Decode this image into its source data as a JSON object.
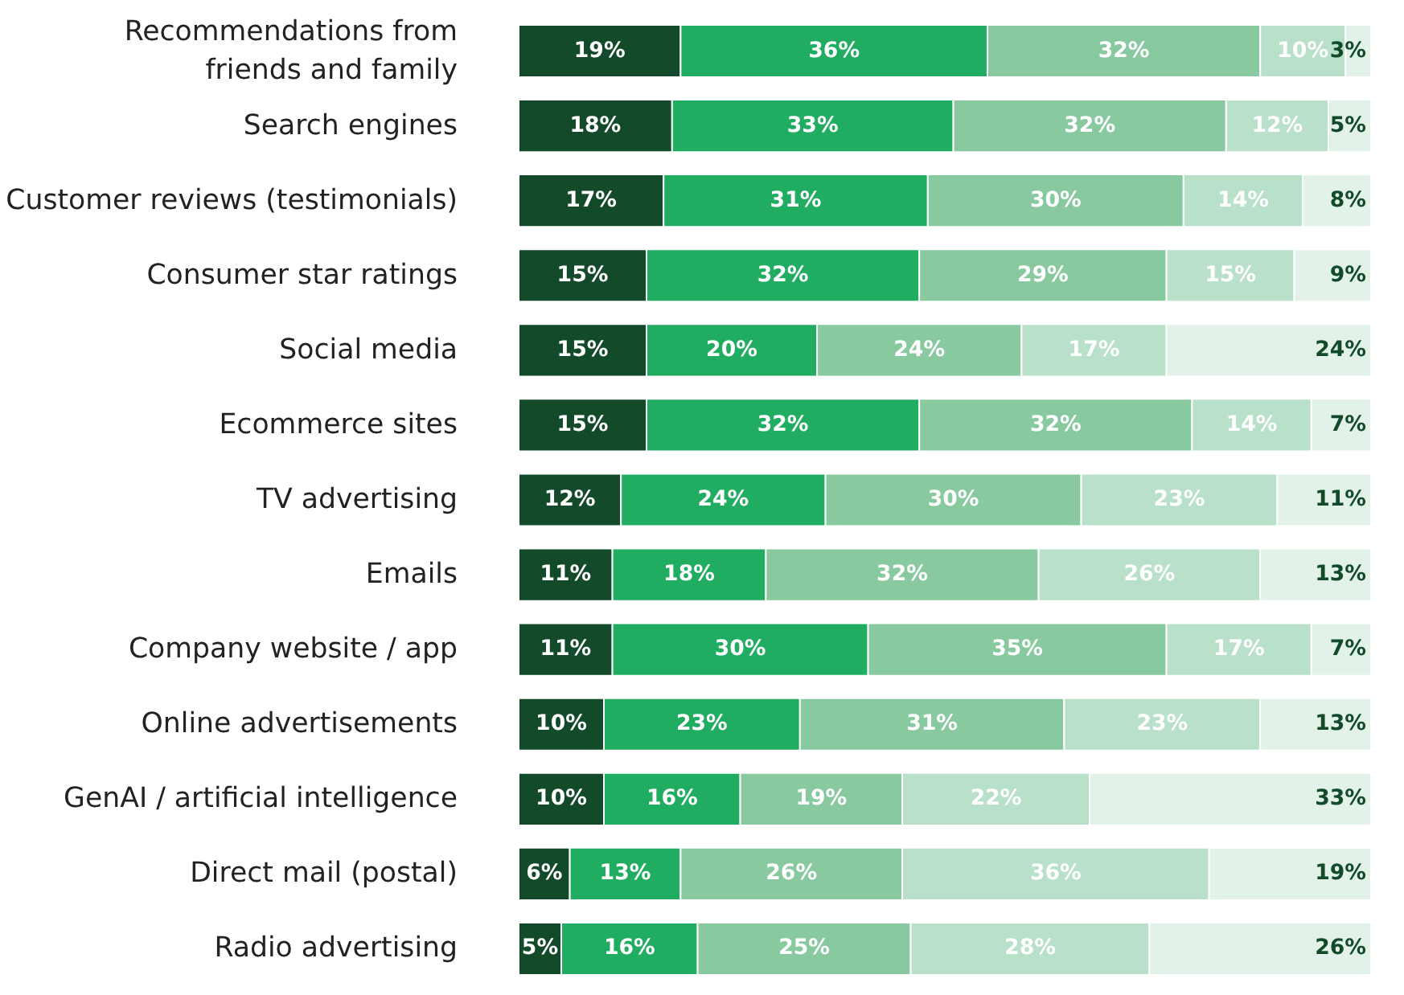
{
  "chart_data": {
    "type": "bar",
    "orientation": "horizontal",
    "stacked": true,
    "tick_labels": "y",
    "categories": [
      "Recommendations from friends and family",
      "Search engines",
      "Customer reviews (testimonials)",
      "Consumer star ratings",
      "Social media",
      "Ecommerce sites",
      "TV advertising",
      "Emails",
      "Company website / app",
      "Online advertisements",
      "GenAI / artificial intelligence",
      "Direct mail (postal)",
      "Radio advertising"
    ],
    "series": [
      {
        "color": "#134a2a",
        "values": [
          19,
          18,
          17,
          15,
          15,
          15,
          12,
          11,
          11,
          10,
          10,
          6,
          5
        ],
        "value_labels": [
          "19%",
          "18%",
          "17%",
          "15%",
          "15%",
          "15%",
          "12%",
          "11%",
          "11%",
          "10%",
          "10%",
          "6%",
          "5%"
        ]
      },
      {
        "color": "#20ad62",
        "values": [
          36,
          33,
          31,
          32,
          20,
          32,
          24,
          18,
          30,
          23,
          16,
          13,
          16
        ],
        "value_labels": [
          "36%",
          "33%",
          "31%",
          "32%",
          "20%",
          "32%",
          "24%",
          "18%",
          "30%",
          "23%",
          "16%",
          "13%",
          "16%"
        ]
      },
      {
        "color": "#88c9a0",
        "values": [
          32,
          32,
          30,
          29,
          24,
          32,
          30,
          32,
          35,
          31,
          19,
          26,
          25
        ],
        "value_labels": [
          "32%",
          "32%",
          "30%",
          "29%",
          "24%",
          "32%",
          "30%",
          "32%",
          "35%",
          "31%",
          "19%",
          "26%",
          "25%"
        ]
      },
      {
        "color": "#b9e0c8",
        "values": [
          10,
          12,
          14,
          15,
          17,
          14,
          23,
          26,
          17,
          23,
          22,
          36,
          28
        ],
        "value_labels": [
          "10%",
          "12%",
          "14%",
          "15%",
          "17%",
          "14%",
          "23%",
          "26%",
          "17%",
          "23%",
          "22%",
          "36%",
          "28%"
        ]
      },
      {
        "color": "#e3f2e8",
        "values": [
          3,
          5,
          8,
          9,
          24,
          7,
          11,
          13,
          7,
          13,
          33,
          19,
          26
        ],
        "value_labels": [
          "3%",
          "5%",
          "8%",
          "9%",
          "24%",
          "7%",
          "11%",
          "13%",
          "7%",
          "13%",
          "33%",
          "19%",
          "26%"
        ]
      }
    ]
  }
}
